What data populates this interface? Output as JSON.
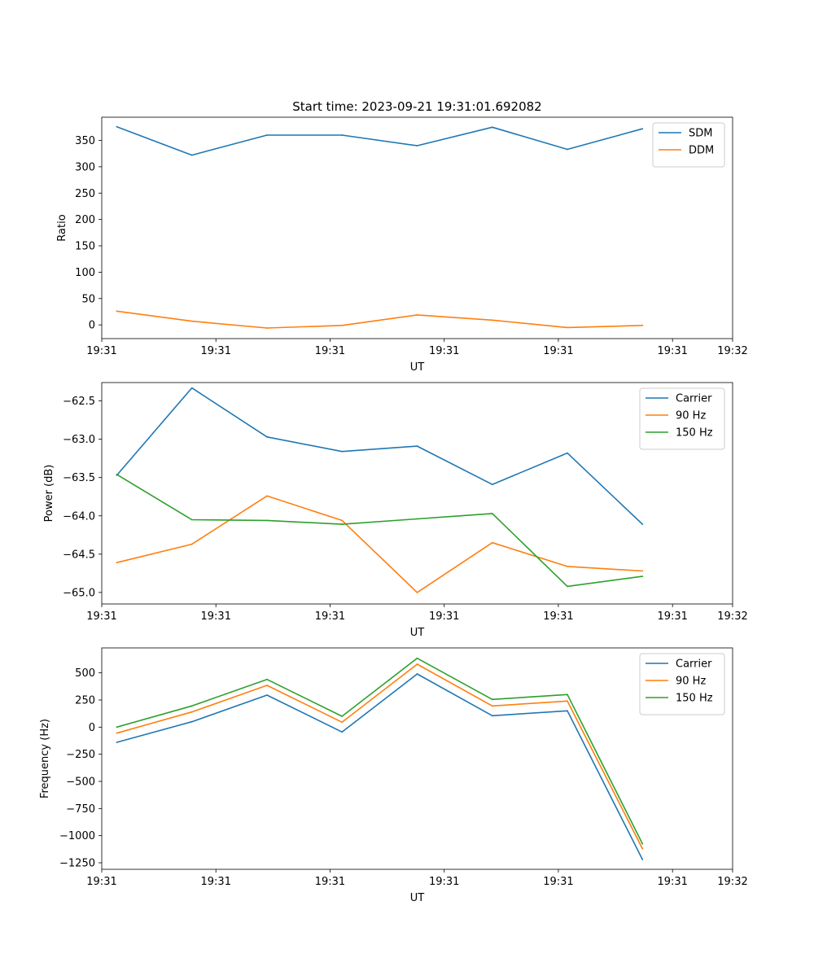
{
  "figure_title": "Start time: 2023-09-21 19:31:01.692082",
  "colors": {
    "blue": "#1f77b4",
    "orange": "#ff7f0e",
    "green": "#2ca02c"
  },
  "chart_data": [
    {
      "type": "line",
      "title": "Start time: 2023-09-21 19:31:01.692082",
      "xlabel": "UT",
      "ylabel": "Ratio",
      "x": [
        1,
        2,
        3,
        4,
        5,
        6,
        7,
        8
      ],
      "xlim": [
        0.8,
        9.2
      ],
      "xticks": [
        0.8,
        2.32,
        3.84,
        5.36,
        6.88,
        8.4,
        9.2
      ],
      "xticklabels": [
        "19:31",
        "19:31",
        "19:31",
        "19:31",
        "19:31",
        "19:31",
        "19:32"
      ],
      "ylim": [
        -26,
        394
      ],
      "yticks": [
        0,
        50,
        100,
        150,
        200,
        250,
        300,
        350
      ],
      "yticklabels": [
        "0",
        "50",
        "100",
        "150",
        "200",
        "250",
        "300",
        "350"
      ],
      "legend": "top-right",
      "series": [
        {
          "name": "SDM",
          "color": "#1f77b4",
          "values": [
            376,
            322,
            360,
            360,
            340,
            375,
            333,
            372
          ]
        },
        {
          "name": "DDM",
          "color": "#ff7f0e",
          "values": [
            26,
            7,
            -6,
            -1,
            19,
            9,
            -5,
            -1
          ]
        }
      ]
    },
    {
      "type": "line",
      "title": "",
      "xlabel": "UT",
      "ylabel": "Power (dB)",
      "x": [
        1,
        2,
        3,
        4,
        5,
        6,
        7,
        8
      ],
      "xlim": [
        0.8,
        9.2
      ],
      "xticks": [
        0.8,
        2.32,
        3.84,
        5.36,
        6.88,
        8.4,
        9.2
      ],
      "xticklabels": [
        "19:31",
        "19:31",
        "19:31",
        "19:31",
        "19:31",
        "19:31",
        "19:32"
      ],
      "ylim": [
        -65.15,
        -62.26
      ],
      "yticks": [
        -65.0,
        -64.5,
        -64.0,
        -63.5,
        -63.0,
        -62.5
      ],
      "yticklabels": [
        "−65.0",
        "−64.5",
        "−64.0",
        "−63.5",
        "−63.0",
        "−62.5"
      ],
      "legend": "top-right",
      "series": [
        {
          "name": "Carrier",
          "color": "#1f77b4",
          "values": [
            -63.47,
            -62.33,
            -62.97,
            -63.16,
            -63.09,
            -63.59,
            -63.18,
            -64.11
          ]
        },
        {
          "name": "90 Hz",
          "color": "#ff7f0e",
          "values": [
            -64.61,
            -64.37,
            -63.74,
            -64.06,
            -65.0,
            -64.35,
            -64.66,
            -64.72
          ]
        },
        {
          "name": "150 Hz",
          "color": "#2ca02c",
          "values": [
            -63.46,
            -64.05,
            -64.06,
            -64.11,
            -64.04,
            -63.97,
            -64.92,
            -64.79
          ]
        }
      ]
    },
    {
      "type": "line",
      "title": "",
      "xlabel": "UT",
      "ylabel": "Frequency (Hz)",
      "x": [
        1,
        2,
        3,
        4,
        5,
        6,
        7,
        8
      ],
      "xlim": [
        0.8,
        9.2
      ],
      "xticks": [
        0.8,
        2.32,
        3.84,
        5.36,
        6.88,
        8.4,
        9.2
      ],
      "xticklabels": [
        "19:31",
        "19:31",
        "19:31",
        "19:31",
        "19:31",
        "19:31",
        "19:32"
      ],
      "ylim": [
        -1310,
        730
      ],
      "yticks": [
        -1250,
        -1000,
        -750,
        -500,
        -250,
        0,
        250,
        500
      ],
      "yticklabels": [
        "−1250",
        "−1000",
        "−750",
        "−500",
        "−250",
        "0",
        "250",
        "500"
      ],
      "legend": "top-right",
      "series": [
        {
          "name": "Carrier",
          "color": "#1f77b4",
          "values": [
            -140,
            50,
            295,
            -45,
            490,
            105,
            150,
            -1220
          ]
        },
        {
          "name": "90 Hz",
          "color": "#ff7f0e",
          "values": [
            -55,
            140,
            385,
            45,
            580,
            195,
            240,
            -1120
          ]
        },
        {
          "name": "150 Hz",
          "color": "#2ca02c",
          "values": [
            0,
            195,
            440,
            100,
            635,
            255,
            300,
            -1075
          ]
        }
      ]
    }
  ]
}
